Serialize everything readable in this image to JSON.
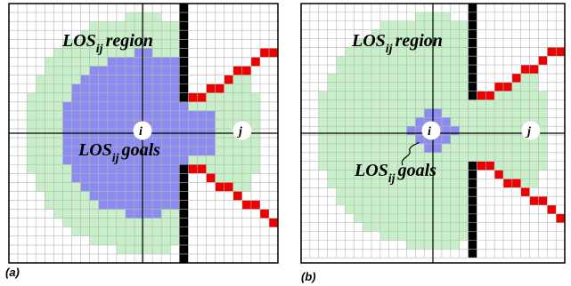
{
  "panels": [
    {
      "id": "a",
      "caption": "(a)",
      "region_label": {
        "main": "LOS",
        "sub": "ij",
        "tail": "region"
      },
      "goals_label": {
        "main": "LOS",
        "sub": "ij",
        "tail": "goals"
      },
      "node_i": "i",
      "node_j": "j",
      "goals_extent": "large"
    },
    {
      "id": "b",
      "caption": "(b)",
      "region_label": {
        "main": "LOS",
        "sub": "ij",
        "tail": "region"
      },
      "goals_label": {
        "main": "LOS",
        "sub": "ij",
        "tail": "goals"
      },
      "node_i": "i",
      "node_j": "j",
      "goals_extent": "small"
    }
  ],
  "colors": {
    "grid_line": "#b4b4b4",
    "region_fill": "#c8f0c8",
    "goals_fill": "#8c8cf0",
    "wall": "#000000",
    "red_cells": "#ee0000",
    "node_fill": "#ffffff"
  }
}
